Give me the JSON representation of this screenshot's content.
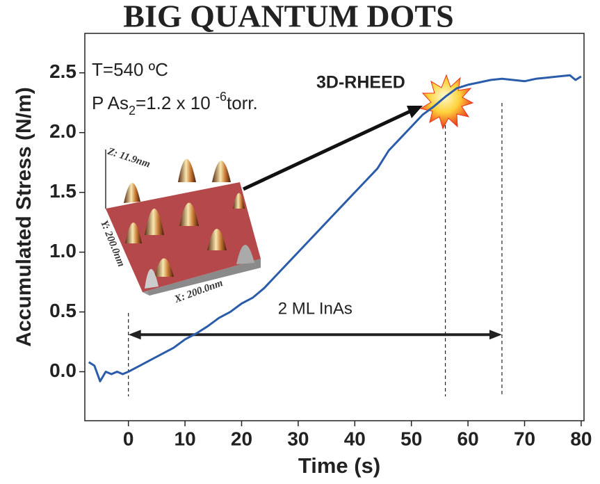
{
  "chart_data": {
    "type": "line",
    "title": "BIG QUANTUM DOTS",
    "x_label": "Time (s)",
    "y_label": "Accumulated Stress (N/m)",
    "x": [
      -7,
      -6,
      -5,
      -4,
      -3,
      -2,
      -1,
      0,
      2,
      4,
      6,
      8,
      10,
      12,
      14,
      16,
      18,
      20,
      22,
      24,
      26,
      28,
      30,
      32,
      34,
      36,
      38,
      40,
      42,
      44,
      46,
      48,
      50,
      52,
      54,
      56,
      58,
      60,
      62,
      64,
      66,
      68,
      70,
      72,
      74,
      76,
      78,
      79,
      80
    ],
    "values": [
      0.08,
      0.05,
      -0.08,
      0.0,
      -0.02,
      0.0,
      -0.02,
      0.0,
      0.05,
      0.1,
      0.15,
      0.2,
      0.27,
      0.32,
      0.38,
      0.45,
      0.5,
      0.57,
      0.62,
      0.7,
      0.8,
      0.9,
      1.0,
      1.1,
      1.2,
      1.3,
      1.4,
      1.5,
      1.6,
      1.7,
      1.85,
      1.95,
      2.05,
      2.15,
      2.22,
      2.3,
      2.37,
      2.4,
      2.42,
      2.44,
      2.45,
      2.44,
      2.43,
      2.45,
      2.46,
      2.47,
      2.48,
      2.44,
      2.47
    ],
    "color": "#2a5caa",
    "xlim": [
      -7.7,
      80.5
    ],
    "ylim": [
      -0.41,
      2.83
    ],
    "xticks": [
      0,
      10,
      20,
      30,
      40,
      50,
      60,
      70,
      80
    ],
    "yticks": [
      {
        "value": 0,
        "label": "0.0"
      },
      0.5,
      {
        "value": 1,
        "label": "1.0"
      },
      1.5,
      {
        "value": 2,
        "label": "2.0"
      },
      2.5
    ],
    "annotations": {
      "conditions": "T=540 ºC",
      "pressure": [
        "P As",
        "2",
        "=1.2 x 10 ",
        "-6",
        "torr."
      ],
      "rheed": "3D-RHEED",
      "span_label": "2 ML InAs",
      "span": [
        0,
        66
      ],
      "span_y": 0.31,
      "vlines": [
        0,
        56,
        66
      ]
    },
    "inset": {
      "z": "Z: 11.9nm",
      "y": "Y: 200.0nm",
      "x": "X: 200.0nm"
    }
  }
}
